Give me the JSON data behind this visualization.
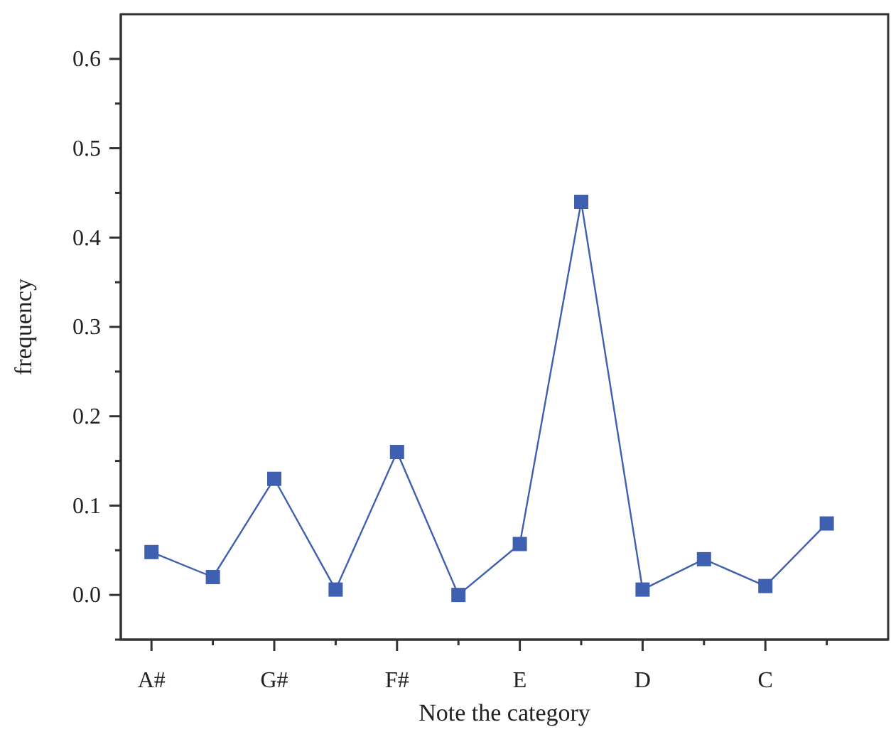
{
  "chart_data": {
    "type": "line",
    "xlabel": "Note the category",
    "ylabel": "frequency",
    "categories": [
      "A#",
      null,
      "G#",
      null,
      "F#",
      null,
      "E",
      null,
      "D",
      null,
      "C",
      null
    ],
    "series": [
      {
        "color": "#3f5fb0",
        "values": [
          0.048,
          0.02,
          0.13,
          0.006,
          0.16,
          0.0,
          0.057,
          0.44,
          0.006,
          0.04,
          0.01,
          0.08
        ]
      }
    ],
    "ylim": [
      -0.05,
      0.65
    ],
    "yticks": [
      {
        "value": -0.05,
        "label": null
      },
      {
        "value": 0,
        "label": "0.0"
      },
      {
        "value": 0.05,
        "label": null
      },
      {
        "value": 0.1,
        "label": "0.1"
      },
      {
        "value": 0.15,
        "label": null
      },
      {
        "value": 0.2,
        "label": "0.2"
      },
      {
        "value": 0.25,
        "label": null
      },
      {
        "value": 0.3,
        "label": "0.3"
      },
      {
        "value": 0.35,
        "label": null
      },
      {
        "value": 0.4,
        "label": "0.4"
      },
      {
        "value": 0.45,
        "label": null
      },
      {
        "value": 0.5,
        "label": "0.5"
      },
      {
        "value": 0.55,
        "label": null
      },
      {
        "value": 0.6,
        "label": "0.6"
      }
    ],
    "marker": "square",
    "line_style": "solid",
    "grid": false
  }
}
